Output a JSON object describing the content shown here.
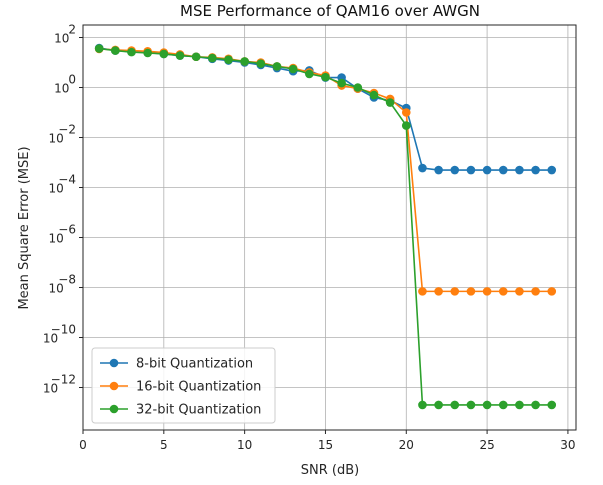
{
  "chart_data": {
    "type": "line",
    "title": "MSE Performance of QAM16 over AWGN",
    "xlabel": "SNR (dB)",
    "ylabel": "Mean Square Error (MSE)",
    "yscale": "log",
    "xlim": [
      0,
      30.5
    ],
    "ylim_exp": [
      -13.7,
      2.5
    ],
    "x_ticks": [
      0,
      5,
      10,
      15,
      20,
      25,
      30
    ],
    "y_ticks": [
      {
        "exp": 2,
        "base": "10",
        "power": "2"
      },
      {
        "exp": 0,
        "base": "10",
        "power": "0"
      },
      {
        "exp": -2,
        "base": "10",
        "power": "−2"
      },
      {
        "exp": -4,
        "base": "10",
        "power": "−4"
      },
      {
        "exp": -6,
        "base": "10",
        "power": "−6"
      },
      {
        "exp": -8,
        "base": "10",
        "power": "−8"
      },
      {
        "exp": -10,
        "base": "10",
        "power": "−10"
      },
      {
        "exp": -12,
        "base": "10",
        "power": "−12"
      }
    ],
    "grid": true,
    "legend_position": "lower-left",
    "x": [
      1,
      2,
      3,
      4,
      5,
      6,
      7,
      8,
      9,
      10,
      11,
      12,
      13,
      14,
      15,
      16,
      17,
      18,
      19,
      20,
      21,
      22,
      23,
      24,
      25,
      26,
      27,
      28,
      29
    ],
    "series": [
      {
        "name": "8-bit Quantization",
        "color": "#1f77b4",
        "values": [
          38,
          30,
          27,
          25,
          22,
          19,
          17,
          14,
          12,
          10,
          8,
          6,
          4.5,
          4.8,
          2.5,
          2.5,
          0.9,
          0.4,
          0.3,
          0.15,
          0.0006,
          0.0005,
          0.0005,
          0.0005,
          0.0005,
          0.0005,
          0.0005,
          0.0005,
          0.0005
        ]
      },
      {
        "name": "16-bit Quantization",
        "color": "#ff7f0e",
        "values": [
          35,
          32,
          30,
          28,
          25,
          21,
          17,
          16,
          14,
          11,
          10,
          7,
          6,
          4,
          3,
          1.2,
          0.9,
          0.6,
          0.35,
          0.1,
          7e-09,
          7e-09,
          7e-09,
          7e-09,
          7e-09,
          7e-09,
          7e-09,
          7e-09,
          7e-09
        ]
      },
      {
        "name": "32-bit Quantization",
        "color": "#2ca02c",
        "values": [
          36,
          30,
          26,
          24,
          22,
          19,
          17,
          15,
          13,
          11,
          9,
          7,
          5.5,
          3.5,
          2.6,
          1.5,
          1.0,
          0.5,
          0.25,
          0.03,
          2e-13,
          2e-13,
          2e-13,
          2e-13,
          2e-13,
          2e-13,
          2e-13,
          2e-13,
          2e-13
        ]
      }
    ]
  }
}
